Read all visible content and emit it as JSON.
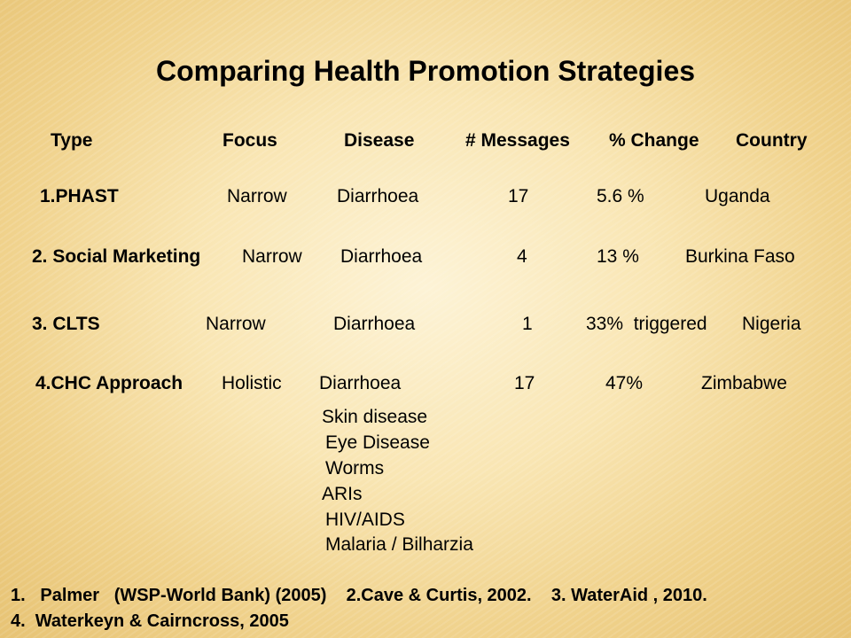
{
  "slide": {
    "title": "Comparing Health Promotion Strategies",
    "headers": {
      "type": "Type",
      "focus": "Focus",
      "disease": "Disease",
      "messages": "# Messages",
      "change": "% Change",
      "country": "Country"
    },
    "rows": [
      {
        "type": "1.PHAST",
        "focus": "Narrow",
        "disease": "Diarrhoea",
        "messages": "17",
        "change": "5.6 %",
        "country": "Uganda"
      },
      {
        "type": "2. Social Marketing",
        "focus": "Narrow",
        "disease": "Diarrhoea",
        "messages": "4",
        "change": "13 %",
        "country": "Burkina Faso"
      },
      {
        "type": "3. CLTS",
        "focus": "Narrow",
        "disease": "Diarrhoea",
        "messages": "1",
        "change": "33%  triggered",
        "country": "Nigeria"
      },
      {
        "type": "4.CHC Approach",
        "focus": "Holistic",
        "disease": "Diarrhoea",
        "messages": "17",
        "change": "47%",
        "country": "Zimbabwe"
      }
    ],
    "extra_diseases": [
      "Skin disease",
      "Eye Disease",
      "Worms",
      "ARIs",
      "HIV/AIDS",
      "Malaria / Bilharzia"
    ],
    "references": {
      "line1": "1.   Palmer   (WSP-World Bank) (2005)    2.Cave & Curtis, 2002.    3. WaterAid , 2010.",
      "line2": "4.  Waterkeyn & Cairncross, 2005"
    }
  }
}
